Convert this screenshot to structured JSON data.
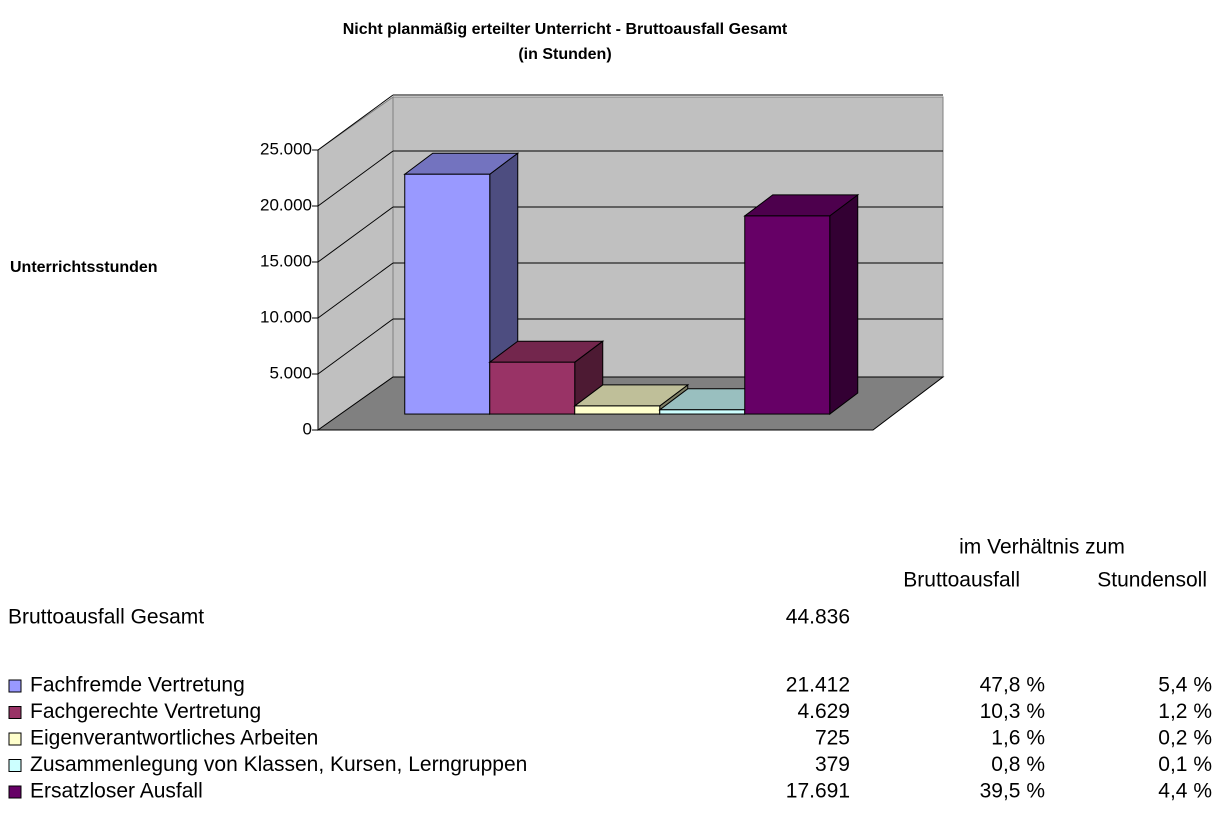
{
  "chart_data": {
    "type": "bar3d",
    "title": "Nicht planmäßig erteilter Unterricht - Bruttoausfall Gesamt",
    "subtitle": "(in Stunden)",
    "y_label": "Unterrichtsstunden",
    "categories": [
      "Fachfremde Vertretung",
      "Fachgerechte Vertretung",
      "Eigenverantwortliches Arbeiten",
      "Zusammenlegung von Klassen, Kursen, Lerngruppen",
      "Ersatzloser Ausfall"
    ],
    "values": [
      21412,
      4629,
      725,
      379,
      17691
    ],
    "value_labels": [
      "21.412",
      "4.629",
      "725",
      "379",
      "17.691"
    ],
    "colors": [
      "#9999ff",
      "#993366",
      "#ffffcc",
      "#ccffff",
      "#660066"
    ],
    "ylim": [
      0,
      25000
    ],
    "yticks": [
      0,
      {
        "value": 5000,
        "label": "5.000"
      },
      {
        "value": 10000,
        "label": "10.000"
      },
      {
        "value": 15000,
        "label": "15.000"
      },
      {
        "value": 20000,
        "label": "20.000"
      },
      {
        "value": 25000,
        "label": "25.000"
      }
    ],
    "grid": true
  },
  "table": {
    "header": "im Verhältnis zum",
    "columns": [
      "Bruttoausfall",
      "Stundensoll"
    ],
    "total_label": "Bruttoausfall Gesamt",
    "total_value": "44.836",
    "rows": [
      [
        "47,8 %",
        "5,4 %"
      ],
      [
        "10,3 %",
        "1,2 %"
      ],
      [
        "1,6 %",
        "0,2 %"
      ],
      [
        "0,8 %",
        "0,1 %"
      ],
      [
        "39,5 %",
        "4,4 %"
      ]
    ]
  }
}
